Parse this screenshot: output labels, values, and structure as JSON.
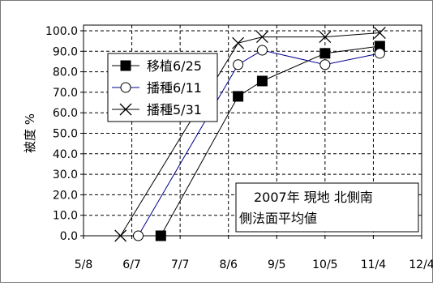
{
  "chart_data": {
    "type": "line",
    "ylabel": "被度 %",
    "xlabel": "",
    "ylim": [
      0,
      100
    ],
    "y_ticks": [
      "0.0",
      "10.0",
      "20.0",
      "30.0",
      "40.0",
      "50.0",
      "60.0",
      "70.0",
      "80.0",
      "90.0",
      "100.0"
    ],
    "x_ticks": [
      "5/8",
      "6/7",
      "7/7",
      "8/6",
      "9/5",
      "10/5",
      "11/4",
      "12/4"
    ],
    "x_domain": [
      "5/8",
      "12/4"
    ],
    "grid": true,
    "legend_position": "top-left",
    "annotation": [
      "2007年 現地 北側南",
      "側法面平均値"
    ],
    "series": [
      {
        "name": "移植6/25",
        "marker": "filled-square",
        "color": "#000000",
        "points": [
          [
            "6/25",
            0.0
          ],
          [
            "8/12",
            68.0
          ],
          [
            "8/27",
            75.5
          ],
          [
            "10/5",
            89.0
          ],
          [
            "11/8",
            92.5
          ]
        ]
      },
      {
        "name": "播種6/11",
        "marker": "open-circle",
        "color": "#00008B",
        "points": [
          [
            "6/11",
            0.0
          ],
          [
            "8/12",
            83.5
          ],
          [
            "8/27",
            90.5
          ],
          [
            "10/5",
            83.5
          ],
          [
            "11/8",
            89.0
          ]
        ]
      },
      {
        "name": "播種5/31",
        "marker": "x-cross",
        "color": "#000000",
        "points": [
          [
            "5/31",
            0.0
          ],
          [
            "8/12",
            94.0
          ],
          [
            "8/27",
            97.0
          ],
          [
            "10/5",
            97.0
          ],
          [
            "11/8",
            99.0
          ]
        ]
      }
    ]
  }
}
